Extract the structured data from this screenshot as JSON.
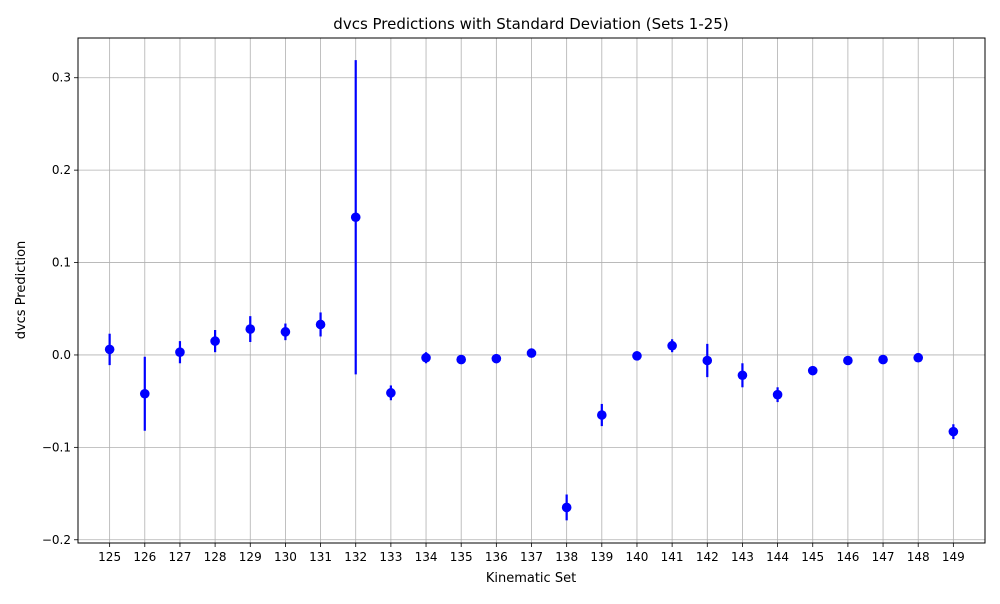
{
  "chart_data": {
    "type": "scatter",
    "title": "dvcs Predictions with Standard Deviation (Sets 1-25)",
    "xlabel": "Kinematic Set",
    "ylabel": "dvcs Prediction",
    "x": [
      125,
      126,
      127,
      128,
      129,
      130,
      131,
      132,
      133,
      134,
      135,
      136,
      137,
      138,
      139,
      140,
      141,
      142,
      143,
      144,
      145,
      146,
      147,
      148,
      149
    ],
    "y": [
      0.006,
      -0.042,
      0.003,
      0.015,
      0.028,
      0.025,
      0.033,
      0.149,
      -0.041,
      -0.003,
      -0.005,
      -0.004,
      0.002,
      -0.165,
      -0.065,
      -0.001,
      0.01,
      -0.006,
      -0.022,
      -0.043,
      -0.017,
      -0.006,
      -0.005,
      -0.003,
      -0.083
    ],
    "yerr": [
      0.017,
      0.04,
      0.012,
      0.012,
      0.014,
      0.009,
      0.013,
      0.17,
      0.008,
      0.006,
      0.004,
      0.003,
      0.003,
      0.014,
      0.012,
      0.005,
      0.007,
      0.018,
      0.013,
      0.008,
      0.003,
      0.002,
      0.002,
      0.002,
      0.008
    ],
    "ylim": [
      -0.2035,
      0.343
    ],
    "xlim": [
      124.1,
      149.9
    ],
    "yticks": [
      -0.2,
      -0.1,
      0.0,
      0.1,
      0.2,
      0.3
    ],
    "ytick_labels": [
      "−0.2",
      "−0.1",
      "0.0",
      "0.1",
      "0.2",
      "0.3"
    ],
    "grid": true,
    "color": "#0000ff",
    "grid_color": "#b0b0b0"
  }
}
